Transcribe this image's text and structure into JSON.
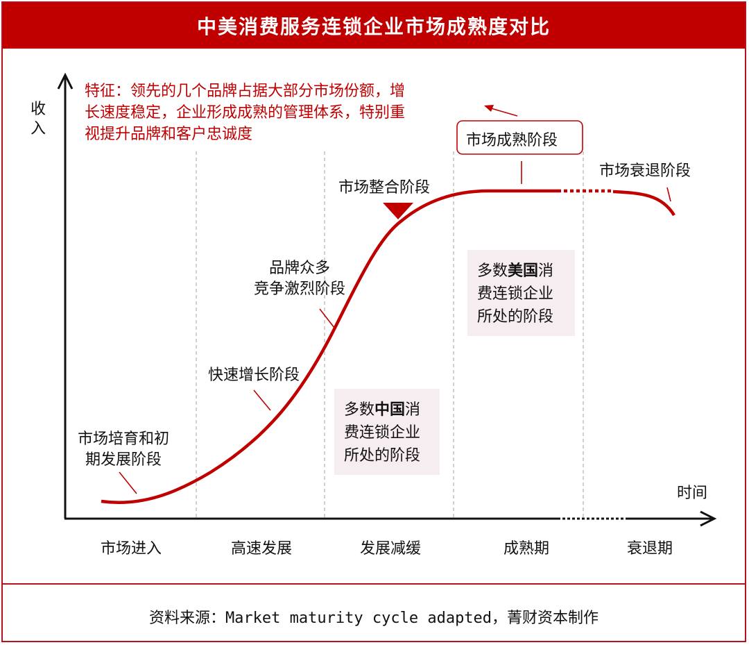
{
  "title": "中美消费服务连锁企业市场成熟度对比",
  "axes": {
    "y_label": "收入",
    "x_label": "时间"
  },
  "feature_note": "特征：领先的几个品牌占据大部分市场份额，增长速度稳定，企业形成成熟的管理体系，特别重视提升品牌和客户忠诚度",
  "stages": [
    "市场进入",
    "高速发展",
    "发展减缓",
    "成熟期",
    "衰退期"
  ],
  "curve_labels": {
    "incubation": [
      "市场培育和初",
      "期发展阶段"
    ],
    "growth": "快速增长阶段",
    "competition": [
      "品牌众多",
      "竞争激烈阶段"
    ],
    "consolidation": "市场整合阶段",
    "maturity": "市场成熟阶段",
    "decline": "市场衰退阶段"
  },
  "boxes": {
    "china": {
      "line1_pre": "多数",
      "line1_bold": "中国",
      "line1_post": "消",
      "line2": "费连锁企业",
      "line3": "所处的阶段"
    },
    "usa": {
      "line1_pre": "多数",
      "line1_bold": "美国",
      "line1_post": "消",
      "line2": "费连锁企业",
      "line3": "所处的阶段"
    }
  },
  "source": "资料来源：Market maturity cycle adapted，菁财资本制作",
  "colors": {
    "accent": "#c00000",
    "box_bg": "#f6edf0",
    "divider": "#b0b0b0"
  }
}
